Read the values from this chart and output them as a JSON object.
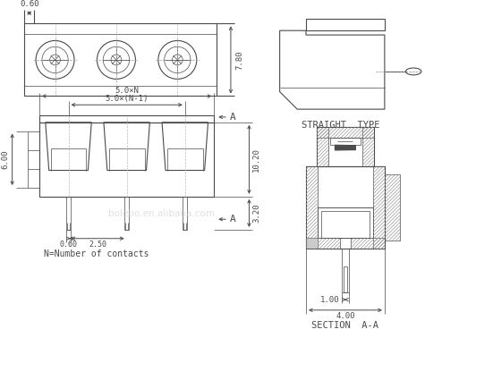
{
  "bg_color": "#ffffff",
  "line_color": "#4a4a4a",
  "watermark": "bolebo.en.alibaba.com",
  "straight_type_label": "STRAIGHT  TYPE",
  "section_label": "SECTION  A-A",
  "n_label": "N=Number of contacts",
  "dims": {
    "top_width_label": "0.60",
    "side_height_label": "7.80",
    "front_top_label": "5.0×N",
    "front_mid_label": "5.0×(N-1)",
    "front_left_label": "6.00",
    "front_bottom_left_label": "0.60",
    "front_bottom_mid_label": "2.50",
    "front_right_top_label": "10.20",
    "front_right_bot_label": "3.20",
    "section_dim1": "1.00",
    "section_dim2": "4.00"
  }
}
